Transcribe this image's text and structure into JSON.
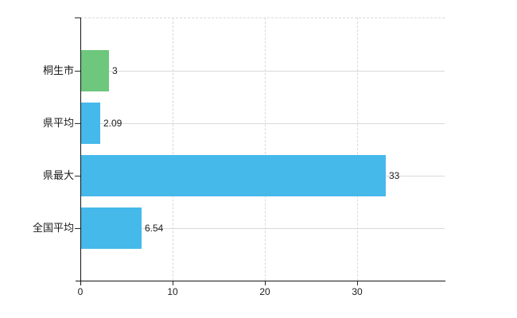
{
  "chart_data": {
    "type": "bar",
    "orientation": "horizontal",
    "title": "",
    "categories": [
      "桐生市",
      "県平均",
      "県最大",
      "全国平均"
    ],
    "values": [
      3,
      2.09,
      33,
      6.54
    ],
    "value_labels": [
      "3",
      "2.09",
      "33",
      "6.54"
    ],
    "series": [
      {
        "name": "",
        "values": [
          3,
          2.09,
          33,
          6.54
        ]
      }
    ],
    "bar_colors": [
      "#6dc77d",
      "#45b9ea",
      "#45b9ea",
      "#45b9ea"
    ],
    "x_ticks": [
      0,
      10,
      20,
      30
    ],
    "x_tick_labels": [
      "0",
      "10",
      "20",
      "30"
    ],
    "xlim": [
      0,
      39.5
    ],
    "xlabel": "",
    "ylabel": "",
    "grid": true,
    "legend_position": "none",
    "background_color": "#ffffff",
    "axis_color": "#141414",
    "gridline_color": "#d9d9d9",
    "text_color": "#1b1b1b"
  }
}
